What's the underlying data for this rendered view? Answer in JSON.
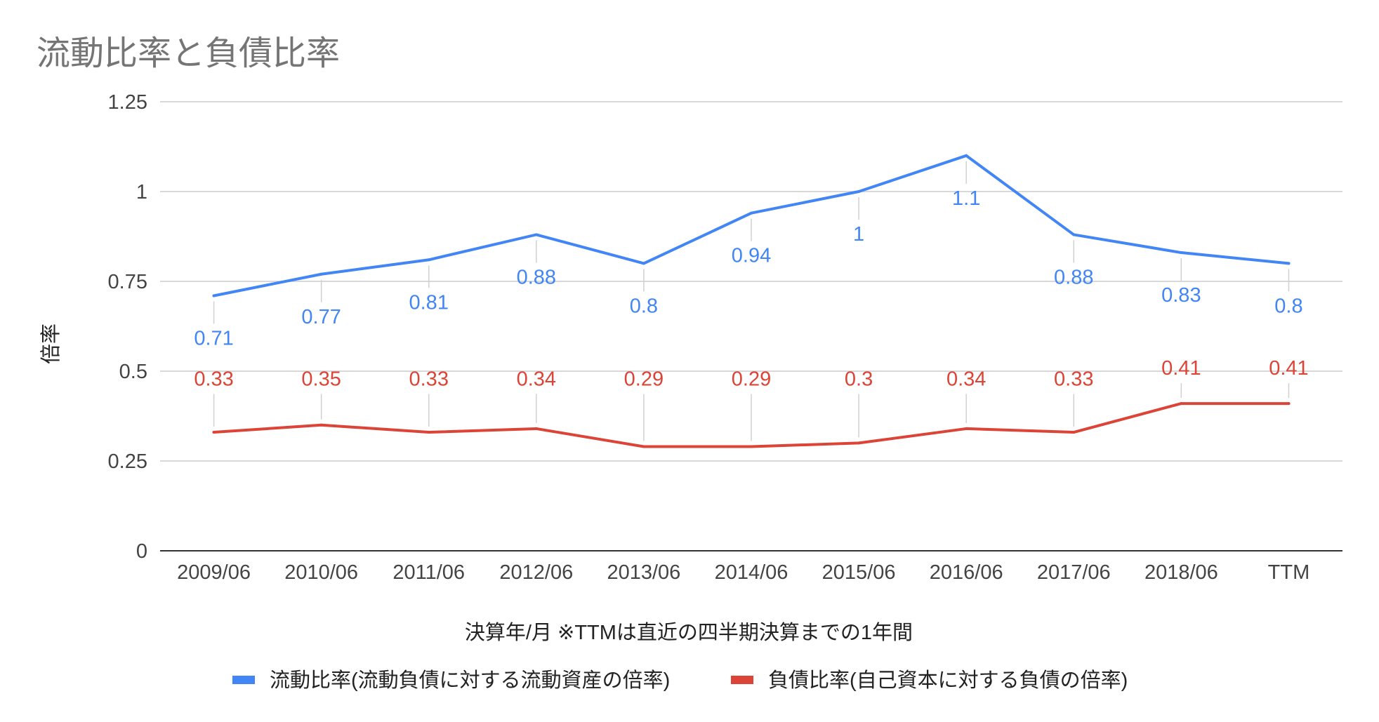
{
  "chart_data": {
    "type": "line",
    "title": "流動比率と負債比率",
    "xlabel": "決算年/月 ※TTMは直近の四半期決算までの1年間",
    "ylabel": "倍率",
    "ylim": [
      0,
      1.25
    ],
    "yticks": [
      0,
      0.25,
      0.5,
      0.75,
      1,
      1.25
    ],
    "ytick_labels": [
      "0",
      "0.25",
      "0.5",
      "0.75",
      "1",
      "1.25"
    ],
    "grid": true,
    "legend_position": "bottom",
    "categories": [
      "2009/06",
      "2010/06",
      "2011/06",
      "2012/06",
      "2013/06",
      "2014/06",
      "2015/06",
      "2016/06",
      "2017/06",
      "2018/06",
      "TTM"
    ],
    "series": [
      {
        "name": "流動比率(流動負債に対する流動資産の倍率)",
        "color": "#4285F4",
        "values": [
          0.71,
          0.77,
          0.81,
          0.88,
          0.8,
          0.94,
          1,
          1.1,
          0.88,
          0.83,
          0.8
        ],
        "labels": [
          "0.71",
          "0.77",
          "0.81",
          "0.88",
          "0.8",
          "0.94",
          "1",
          "1.1",
          "0.88",
          "0.83",
          "0.8"
        ]
      },
      {
        "name": "負債比率(自己資本に対する負債の倍率)",
        "color": "#DB4437",
        "values": [
          0.33,
          0.35,
          0.33,
          0.34,
          0.29,
          0.29,
          0.3,
          0.34,
          0.33,
          0.41,
          0.41
        ],
        "labels": [
          "0.33",
          "0.35",
          "0.33",
          "0.34",
          "0.29",
          "0.29",
          "0.3",
          "0.34",
          "0.33",
          "0.41",
          "0.41"
        ]
      }
    ]
  }
}
